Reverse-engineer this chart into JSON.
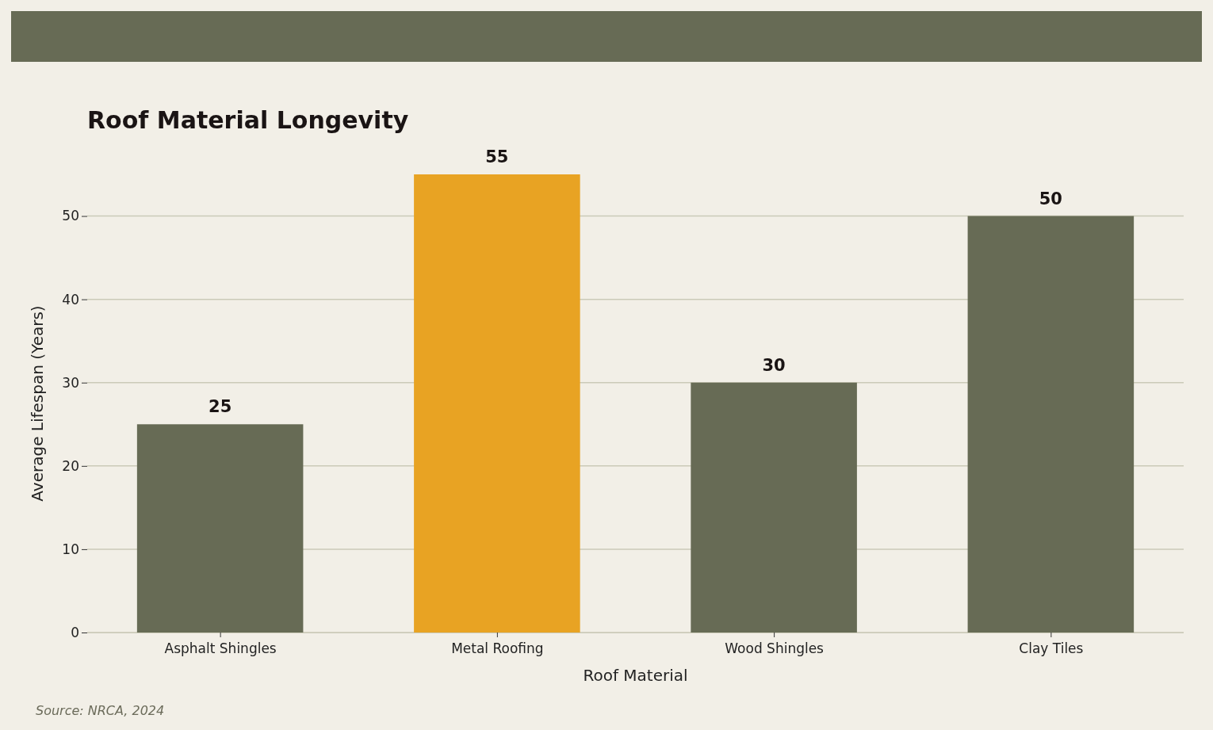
{
  "chart_data": {
    "type": "bar",
    "title": "Roof Material Longevity",
    "xlabel": "Roof Material",
    "ylabel": "Average Lifespan (Years)",
    "categories": [
      "Asphalt Shingles",
      "Metal Roofing",
      "Wood Shingles",
      "Clay Tiles"
    ],
    "values": [
      25,
      55,
      30,
      50
    ],
    "colors": [
      "#676b55",
      "#e8a323",
      "#676b55",
      "#676b55"
    ],
    "ylim": [
      0,
      55
    ],
    "yticks": [
      0,
      10,
      20,
      30,
      40,
      50
    ],
    "grid": "y",
    "data_labels": true,
    "annotations": [
      "Source: NRCA, 2024"
    ]
  }
}
